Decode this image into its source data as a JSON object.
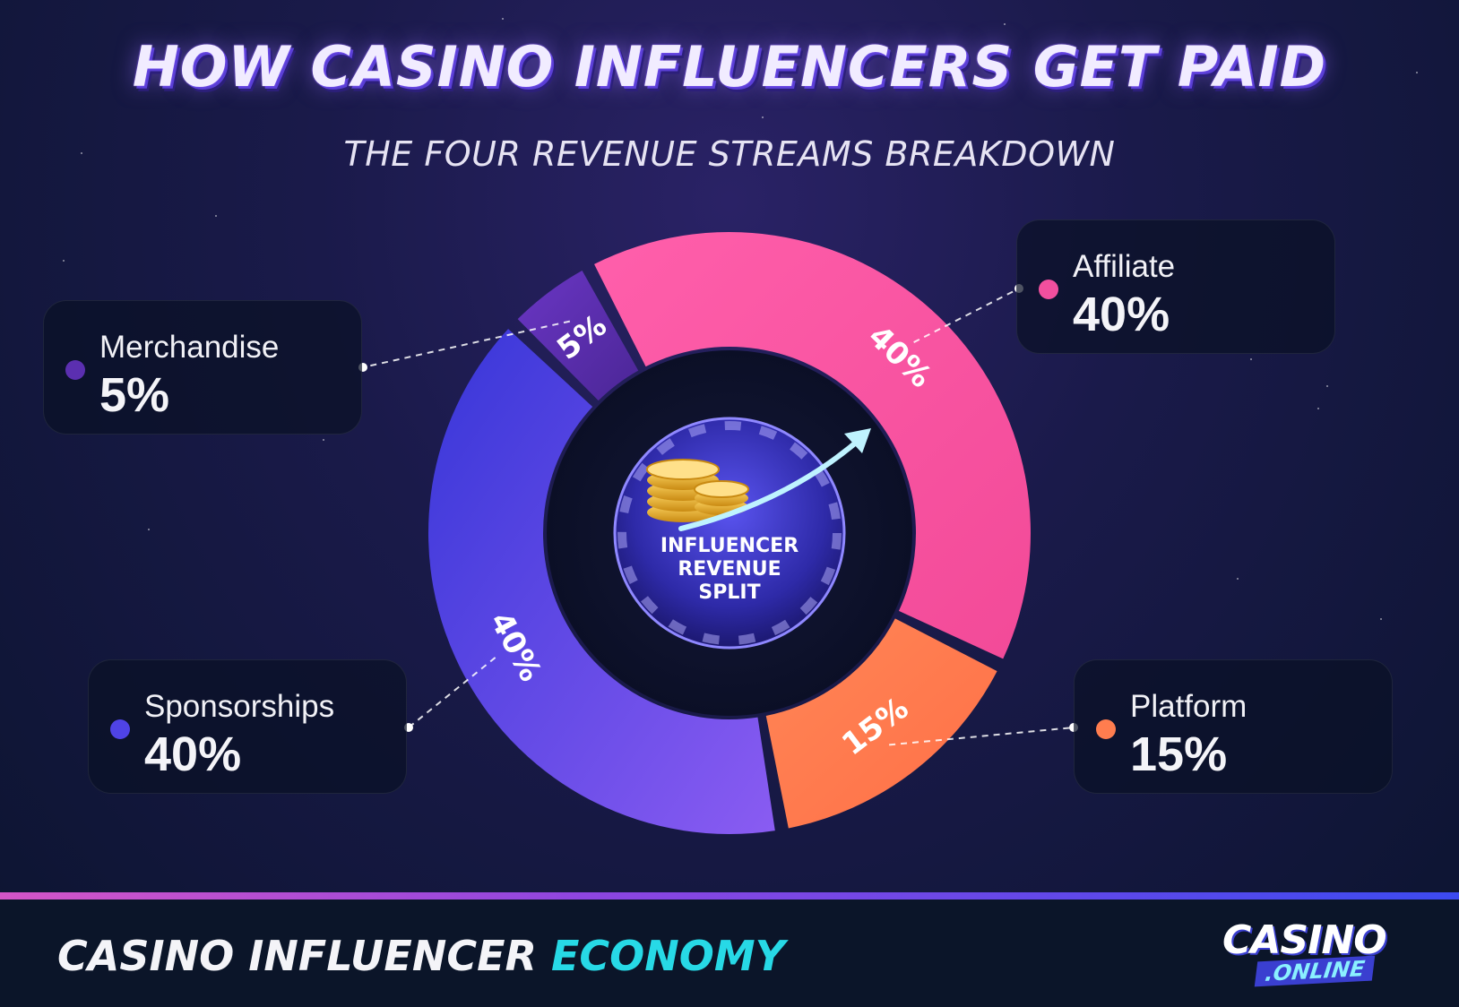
{
  "header": {
    "title": "HOW CASINO INFLUENCERS GET PAID",
    "subtitle": "THE FOUR REVENUE STREAMS BREAKDOWN"
  },
  "center_badge": {
    "line1": "INFLUENCER",
    "line2": "REVENUE",
    "line3": "SPLIT"
  },
  "cards": {
    "merchandise": {
      "name": "Merchandise",
      "value": "5%"
    },
    "affiliate": {
      "name": "Affiliate",
      "value": "40%"
    },
    "sponsorships": {
      "name": "Sponsorships",
      "value": "40%"
    },
    "platform": {
      "name": "Platform",
      "value": "15%"
    }
  },
  "footer": {
    "text_main": "CASINO INFLUENCER",
    "text_accent": "ECONOMY",
    "logo_top": "CASINO",
    "logo_bottom": ".ONLINE"
  },
  "colors": {
    "affiliate": "#f24f9e",
    "platform": "#ff7d4f",
    "sponsorships": "#4f43e6",
    "merchandise": "#5b2fb0",
    "footer_accent": "#27d9e6"
  },
  "chart_data": {
    "type": "pie",
    "title": "HOW CASINO INFLUENCERS GET PAID",
    "subtitle": "THE FOUR REVENUE STREAMS BREAKDOWN",
    "categories": [
      "Affiliate",
      "Platform",
      "Sponsorships",
      "Merchandise"
    ],
    "values": [
      40,
      15,
      40,
      5
    ],
    "value_labels": [
      "40%",
      "15%",
      "40%",
      "5%"
    ],
    "donut": true
  }
}
